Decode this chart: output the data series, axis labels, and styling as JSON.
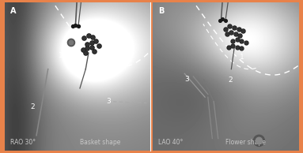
{
  "fig_width": 3.83,
  "fig_height": 1.94,
  "dpi": 100,
  "border_color": "#E8824A",
  "border_linewidth": 2.0,
  "panel_A_label": "A",
  "panel_B_label": "B",
  "panel_A_bottom_left": "RAO 30°",
  "panel_A_bottom_right": "Basket shape",
  "panel_B_bottom_left": "LAO 40°",
  "panel_B_bottom_right": "Flower shape",
  "label_color": "#C8C8C8",
  "label_fontsize": 5.5,
  "panel_letter_fontsize": 7,
  "number_fontsize": 6.5
}
